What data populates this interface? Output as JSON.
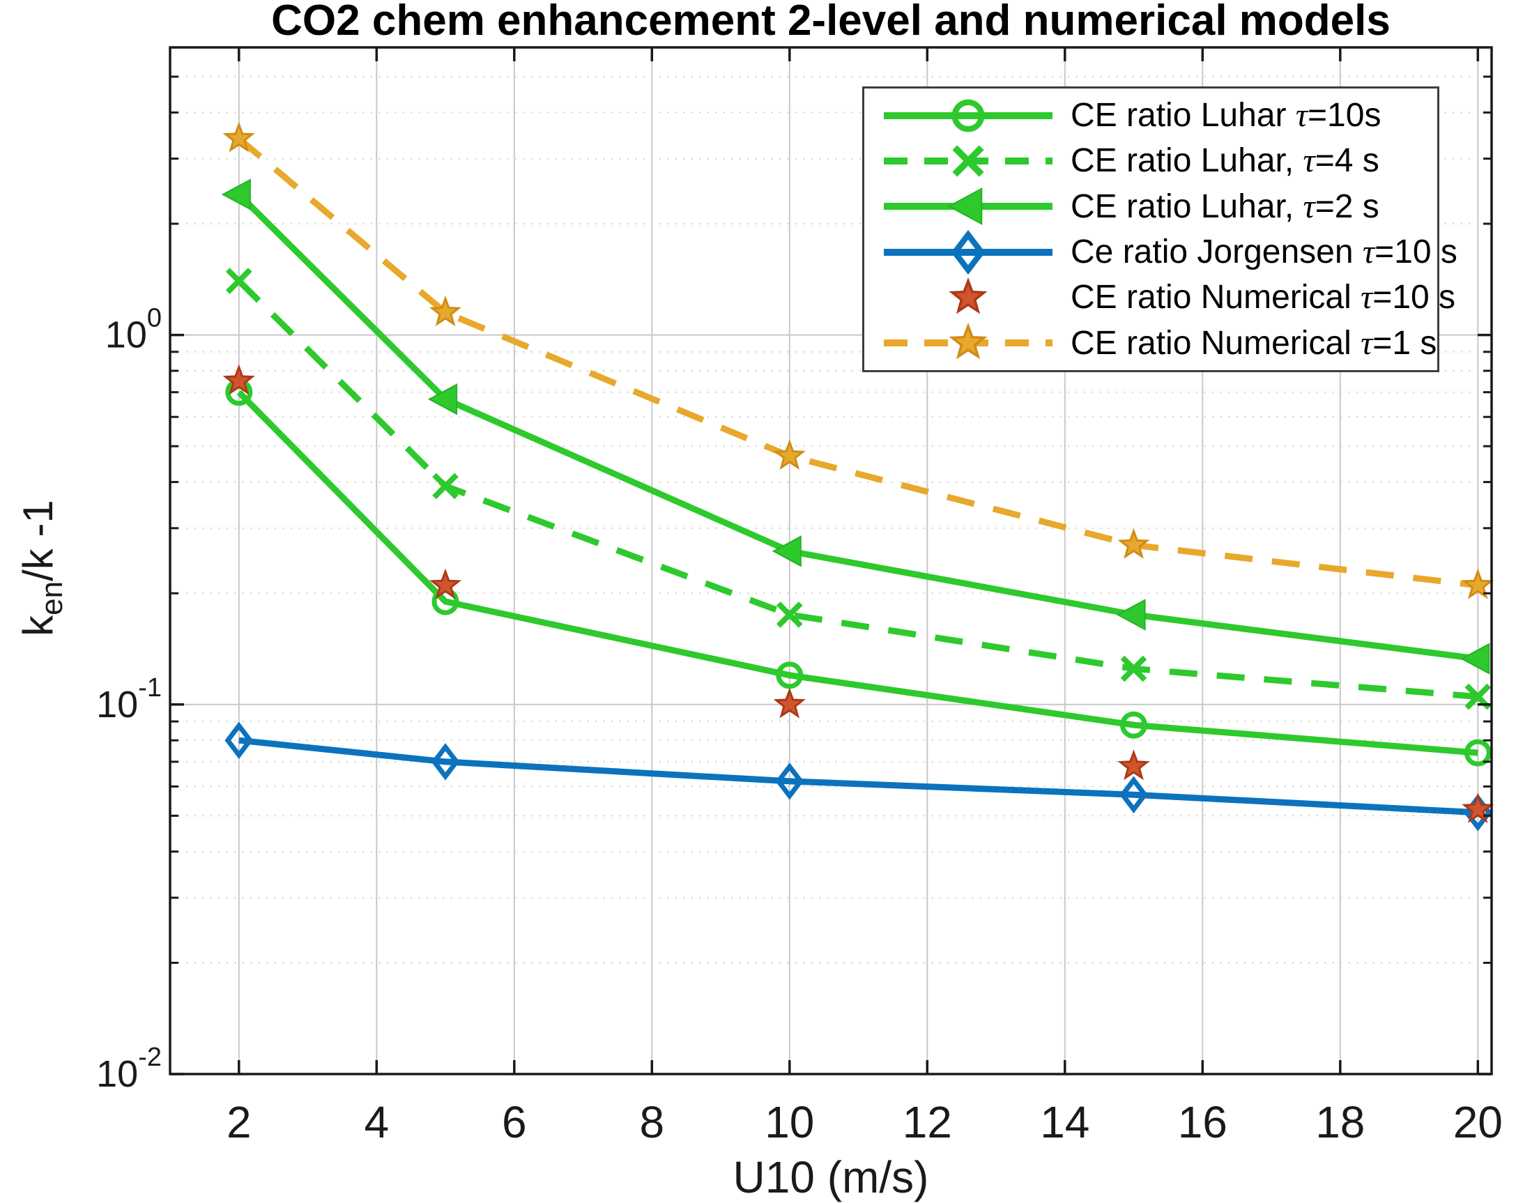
{
  "chart_data": {
    "type": "line",
    "title": "CO2 chem enhancement 2-level and numerical models",
    "xlabel": "U10 (m/s)",
    "ylabel": {
      "pre": "k",
      "sub": "en",
      "post": "/k -1"
    },
    "x_scale": "linear",
    "y_scale": "log",
    "xlim": [
      1,
      20.2
    ],
    "ylim": [
      0.01,
      6
    ],
    "xticks": [
      2,
      4,
      6,
      8,
      10,
      12,
      14,
      16,
      18,
      20
    ],
    "ytick_exponents": [
      0,
      -1,
      -2
    ],
    "grid": "on, major solid + minor dotted",
    "legend_position": "upper right inside",
    "x": [
      2,
      5,
      10,
      15,
      20
    ],
    "series": [
      {
        "name": "CE ratio Luhar τ=10s",
        "color": "#2dc92d",
        "edge": "#2dc92d",
        "linestyle": "solid",
        "marker": "circle",
        "marker_fill": "open",
        "values": [
          0.7,
          0.19,
          0.12,
          0.088,
          0.074
        ]
      },
      {
        "name": "CE ratio Luhar, τ=4 s",
        "color": "#2dc92d",
        "edge": "#2dc92d",
        "linestyle": "dashed",
        "marker": "x",
        "marker_fill": "stroke",
        "values": [
          1.4,
          0.39,
          0.175,
          0.125,
          0.105
        ]
      },
      {
        "name": "CE ratio Luhar, τ=2 s",
        "color": "#2dc92d",
        "edge": "#24b324",
        "linestyle": "solid",
        "marker": "triangle-left",
        "marker_fill": "filled",
        "values": [
          2.4,
          0.67,
          0.26,
          0.175,
          0.133
        ]
      },
      {
        "name": "Ce ratio Jorgensen τ=10 s",
        "color": "#0c72bd",
        "edge": "#0c72bd",
        "linestyle": "solid",
        "marker": "diamond",
        "marker_fill": "open",
        "values": [
          0.08,
          0.07,
          0.062,
          0.057,
          0.051
        ]
      },
      {
        "name": "CE ratio Numerical τ=10 s",
        "color": "#d1542e",
        "edge": "#ab3a16",
        "linestyle": "none",
        "marker": "pentagram",
        "marker_fill": "filled",
        "values": [
          0.75,
          0.21,
          0.1,
          0.068,
          0.052
        ]
      },
      {
        "name": "CE ratio Numerical τ=1 s",
        "color": "#e8a82c",
        "edge": "#cf8d18",
        "linestyle": "dashed",
        "marker": "pentagram",
        "marker_fill": "filled",
        "values": [
          3.4,
          1.15,
          0.47,
          0.27,
          0.21
        ]
      }
    ],
    "style_colors": {
      "axis": "#1a1a1a",
      "grid_major": "#c8c8c8",
      "grid_minor": "#d8d8d8",
      "background": "#ffffff"
    }
  }
}
